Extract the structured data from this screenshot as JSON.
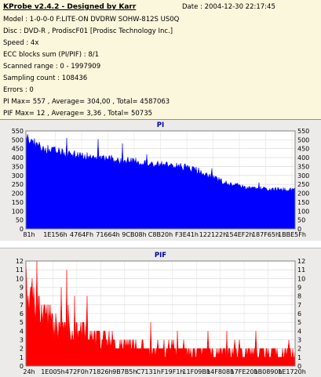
{
  "header": {
    "title": "KProbe v2.4.2 - Designed by Karr",
    "date": "Date : 2004-12-30 22:17:45",
    "lines": [
      "Model : 1-0-0-0 F:LITE-ON DVDRW SOHW-812S  US0Q",
      "Disc : DVD-R , ProdiscF01 [Prodisc Technology Inc.]",
      "Speed : 4x",
      "ECC blocks sum (PI/PIF) : 8/1",
      "Scanned range : 0 - 1997909",
      "Sampling count : 108436",
      "Errors : 0",
      "PI Max= 557 , Average= 304,00 , Total= 4587063",
      "PIF Max= 12 , Average= 3,36 , Total= 50735"
    ]
  },
  "colors": {
    "info_bg": "#fbf7dc",
    "pi_series": "#0000ff",
    "pif_series": "#ff0000",
    "pi_title": "#0000a0",
    "pif_title": "#0000a0"
  },
  "chart_data": [
    {
      "type": "area",
      "title": "PI",
      "ylim": [
        0,
        550
      ],
      "yticks": [
        0,
        50,
        100,
        150,
        200,
        250,
        300,
        350,
        400,
        450,
        500,
        550
      ],
      "xtick_labels": [
        "81h",
        "1E156h",
        "4764Fh",
        "71664h",
        "9CB08h",
        "C8B20h",
        "F3E41h",
        "122122h",
        "154EF2h",
        "187F65h",
        "1BBE5Fh"
      ],
      "x": [
        0,
        0.05,
        0.1,
        0.15,
        0.2,
        0.25,
        0.3,
        0.35,
        0.4,
        0.45,
        0.5,
        0.55,
        0.6,
        0.65,
        0.7,
        0.75,
        0.8,
        0.85,
        0.9,
        0.95,
        1.0
      ],
      "values": [
        515,
        460,
        440,
        420,
        415,
        400,
        395,
        385,
        378,
        368,
        362,
        355,
        345,
        320,
        285,
        255,
        238,
        228,
        222,
        220,
        218
      ],
      "max": 557
    },
    {
      "type": "area",
      "title": "PIF",
      "ylim": [
        0,
        12
      ],
      "yticks": [
        0,
        1,
        2,
        3,
        4,
        5,
        6,
        7,
        8,
        9,
        10,
        11,
        12
      ],
      "xtick_labels": [
        "24h",
        "1E005h",
        "472F0h",
        "71826h",
        "9B7B5h",
        "C7131h",
        "F19F1h",
        "11F09Bh",
        "14F808h",
        "17FE20h",
        "1B0890h",
        "1E1720h"
      ],
      "x": [
        0,
        0.05,
        0.1,
        0.15,
        0.2,
        0.25,
        0.3,
        0.35,
        0.4,
        0.45,
        0.5,
        0.55,
        0.6,
        0.65,
        0.7,
        0.75,
        0.8,
        0.85,
        0.9,
        0.95,
        1.0
      ],
      "values": [
        8,
        7,
        5,
        4,
        4,
        3.5,
        3,
        2.5,
        2.5,
        2,
        2,
        2,
        2,
        1.5,
        1.5,
        1.5,
        1.5,
        1.5,
        1.5,
        1.5,
        1.5
      ],
      "max": 12
    }
  ]
}
